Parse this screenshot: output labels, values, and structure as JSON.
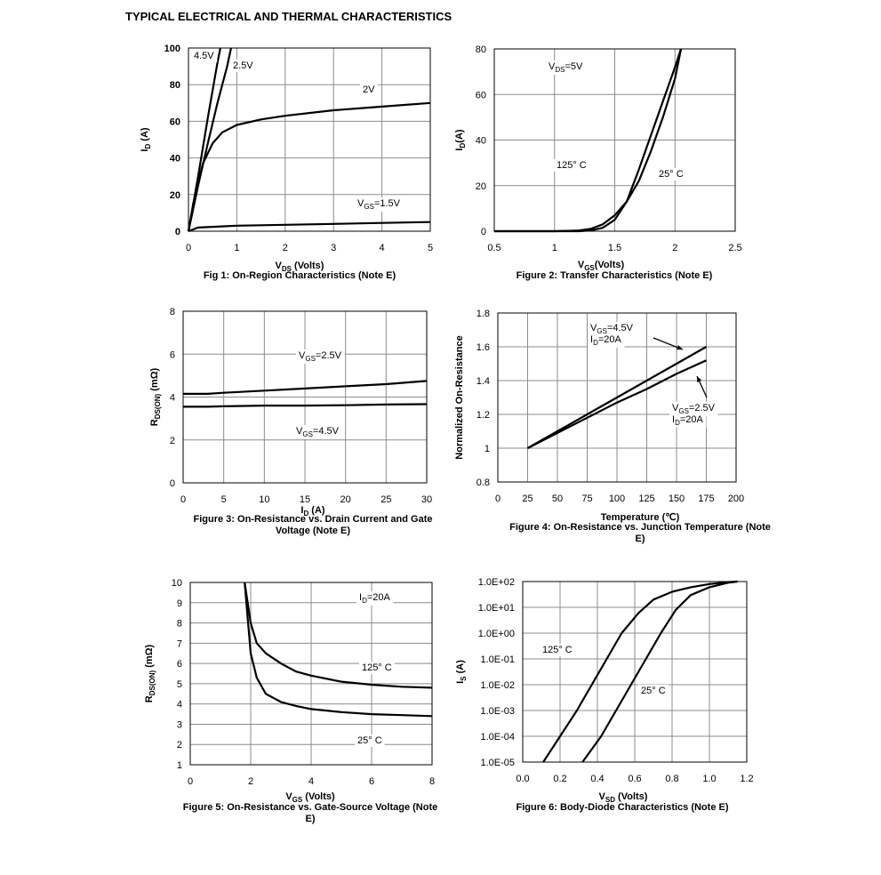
{
  "title": "TYPICAL ELECTRICAL AND THERMAL CHARACTERISTICS",
  "chart_data": [
    {
      "type": "line",
      "title": "Fig 1: On-Region Characteristics (Note E)",
      "xlabel": [
        "V",
        "DS",
        " (Volts)"
      ],
      "ylabel": [
        "I",
        "D",
        " (A)"
      ],
      "xlim": [
        0,
        5
      ],
      "xticks": [
        0,
        1,
        2,
        3,
        4,
        5
      ],
      "ylim": [
        0,
        100
      ],
      "yticks": [
        0,
        20,
        40,
        60,
        80,
        100
      ],
      "grid": true,
      "series": [
        {
          "name": "4.5V",
          "color": "#000000",
          "x": [
            0,
            0.2,
            0.4,
            0.6,
            0.66
          ],
          "values": [
            0,
            30,
            62,
            92,
            100
          ]
        },
        {
          "name": "2.5V",
          "color": "#000000",
          "x": [
            0,
            0.2,
            0.4,
            0.6,
            0.8,
            0.88
          ],
          "values": [
            0,
            25,
            48,
            70,
            90,
            100
          ]
        },
        {
          "name": "2V",
          "color": "#000000",
          "x": [
            0,
            0.1,
            0.2,
            0.3,
            0.5,
            0.7,
            1,
            1.5,
            2,
            3,
            4,
            5
          ],
          "values": [
            0,
            15,
            27,
            37,
            48,
            54,
            58,
            61,
            63,
            66,
            68,
            70
          ]
        },
        {
          "name": [
            "V",
            "GS",
            "=1.5V"
          ],
          "color": "#000000",
          "x": [
            0,
            0.2,
            1,
            2,
            3,
            4,
            5
          ],
          "values": [
            0,
            2,
            3,
            3.5,
            4,
            4.5,
            5
          ]
        }
      ]
    },
    {
      "type": "line",
      "title": "Figure 2: Transfer Characteristics (Note E)",
      "xlabel": [
        "V",
        "GS",
        "(Volts)"
      ],
      "ylabel": [
        "I",
        "D",
        "(A)"
      ],
      "xlim": [
        0.5,
        2.5
      ],
      "xticks": [
        0.5,
        1,
        1.5,
        2,
        2.5
      ],
      "ylim": [
        0,
        80
      ],
      "yticks": [
        0,
        20,
        40,
        60,
        80
      ],
      "grid": true,
      "annotations": [
        [
          "V",
          "DS",
          "=5V"
        ]
      ],
      "series": [
        {
          "name": "125° C",
          "color": "#000000",
          "x": [
            0.5,
            1,
            1.2,
            1.3,
            1.4,
            1.5,
            1.6,
            1.7,
            1.8,
            1.9,
            2.0,
            2.05
          ],
          "values": [
            0,
            0,
            0.3,
            1,
            3,
            7,
            13,
            22,
            35,
            50,
            67,
            80
          ]
        },
        {
          "name": "25° C",
          "color": "#000000",
          "x": [
            0.5,
            1.2,
            1.3,
            1.4,
            1.5,
            1.6,
            1.7,
            1.8,
            1.9,
            2.0,
            2.05
          ],
          "values": [
            0,
            0,
            0.3,
            1.5,
            5,
            13,
            27,
            42,
            57,
            72,
            80
          ]
        }
      ]
    },
    {
      "type": "line",
      "title": "Figure 3: On-Resistance vs. Drain Current and Gate Voltage (Note E)",
      "xlabel": [
        "I",
        "D",
        " (A)"
      ],
      "ylabel": [
        "R",
        "DS(ON)",
        " (mΩ)"
      ],
      "xlim": [
        0,
        30
      ],
      "xticks": [
        0,
        5,
        10,
        15,
        20,
        25,
        30
      ],
      "ylim": [
        0,
        8
      ],
      "yticks": [
        0,
        2,
        4,
        6,
        8
      ],
      "grid": true,
      "series": [
        {
          "name": [
            "V",
            "GS",
            "=2.5V"
          ],
          "color": "#000000",
          "x": [
            0,
            3,
            5,
            10,
            15,
            20,
            25,
            30
          ],
          "values": [
            4.15,
            4.15,
            4.2,
            4.3,
            4.4,
            4.5,
            4.6,
            4.75
          ]
        },
        {
          "name": [
            "V",
            "GS",
            "=4.5V"
          ],
          "color": "#000000",
          "x": [
            0,
            3,
            5,
            10,
            15,
            20,
            25,
            30
          ],
          "values": [
            3.55,
            3.55,
            3.57,
            3.6,
            3.6,
            3.62,
            3.65,
            3.67
          ]
        }
      ]
    },
    {
      "type": "line",
      "title": "Figure 4: On-Resistance vs. Junction Temperature (Note E)",
      "xlabel": "Temperature (℃)",
      "ylabel": "Normalized On-Resistance",
      "xlim": [
        0,
        200
      ],
      "xticks": [
        0,
        25,
        50,
        75,
        100,
        125,
        150,
        175,
        200
      ],
      "ylim": [
        0.8,
        1.8
      ],
      "yticks": [
        0.8,
        1,
        1.2,
        1.4,
        1.6,
        1.8
      ],
      "grid": true,
      "series": [
        {
          "name": [
            [
              "V",
              "GS",
              "=4.5V"
            ],
            [
              "I",
              "D",
              "=20A"
            ]
          ],
          "color": "#000000",
          "x": [
            25,
            50,
            75,
            100,
            125,
            150,
            175
          ],
          "values": [
            1,
            1.1,
            1.2,
            1.3,
            1.4,
            1.5,
            1.6
          ]
        },
        {
          "name": [
            [
              "V",
              "GS",
              "=2.5V"
            ],
            [
              "I",
              "D",
              "=20A"
            ]
          ],
          "color": "#000000",
          "x": [
            25,
            50,
            75,
            100,
            125,
            150,
            175
          ],
          "values": [
            1,
            1.09,
            1.18,
            1.27,
            1.35,
            1.44,
            1.52
          ]
        }
      ]
    },
    {
      "type": "line",
      "title": "Figure 5: On-Resistance vs. Gate-Source Voltage (Note E)",
      "xlabel": [
        "V",
        "GS",
        " (Volts)"
      ],
      "ylabel": [
        "R",
        "DS(ON)",
        " (mΩ)"
      ],
      "xlim": [
        0,
        8
      ],
      "xticks": [
        0,
        2,
        4,
        6,
        8
      ],
      "ylim": [
        1,
        10
      ],
      "yticks": [
        1,
        2,
        3,
        4,
        5,
        6,
        7,
        8,
        9,
        10
      ],
      "grid": true,
      "annotations": [
        [
          "I",
          "D",
          "=20A"
        ]
      ],
      "series": [
        {
          "name": "125° C",
          "color": "#000000",
          "x": [
            1.8,
            2,
            2.2,
            2.5,
            3,
            3.5,
            4,
            5,
            6,
            7,
            8
          ],
          "values": [
            10,
            8,
            7,
            6.5,
            6,
            5.6,
            5.4,
            5.1,
            4.95,
            4.85,
            4.8
          ]
        },
        {
          "name": "25° C",
          "color": "#000000",
          "x": [
            1.8,
            2,
            2.2,
            2.5,
            3,
            3.5,
            4,
            5,
            6,
            7,
            8
          ],
          "values": [
            10,
            6.5,
            5.3,
            4.5,
            4.1,
            3.9,
            3.75,
            3.6,
            3.5,
            3.45,
            3.4
          ]
        }
      ]
    },
    {
      "type": "line",
      "title": "Figure 6: Body-Diode Characteristics (Note E)",
      "xlabel": [
        "V",
        "SD",
        " (Volts)"
      ],
      "ylabel": [
        "I",
        "S",
        " (A)"
      ],
      "xlim": [
        0,
        1.2
      ],
      "xticks": [
        {
          "value": 0,
          "label": "0.0"
        },
        0.2,
        0.4,
        0.6,
        0.8,
        {
          "value": 1,
          "label": "1.0"
        },
        1.2
      ],
      "ylim": [
        1e-05,
        100
      ],
      "yscale": "log",
      "yticks": [
        {
          "value": 1e-05,
          "label": "1.0E-05"
        },
        {
          "value": 0.0001,
          "label": "1.0E-04"
        },
        {
          "value": 0.001,
          "label": "1.0E-03"
        },
        {
          "value": 0.01,
          "label": "1.0E-02"
        },
        {
          "value": 0.1,
          "label": "1.0E-01"
        },
        {
          "value": 1,
          "label": "1.0E+00"
        },
        {
          "value": 10,
          "label": "1.0E+01"
        },
        {
          "value": 100,
          "label": "1.0E+02"
        }
      ],
      "grid": true,
      "series": [
        {
          "name": "125° C",
          "color": "#000000",
          "x": [
            0.11,
            0.2,
            0.29,
            0.37,
            0.45,
            0.53,
            0.62,
            0.7,
            0.8,
            0.9,
            1.0,
            1.1,
            1.15
          ],
          "values": [
            1e-05,
            0.0001,
            0.001,
            0.01,
            0.1,
            1,
            6,
            20,
            40,
            60,
            80,
            95,
            100
          ]
        },
        {
          "name": "25° C",
          "color": "#000000",
          "x": [
            0.32,
            0.42,
            0.5,
            0.58,
            0.66,
            0.74,
            0.82,
            0.9,
            1.0,
            1.1,
            1.15
          ],
          "values": [
            1e-05,
            0.0001,
            0.001,
            0.01,
            0.1,
            1,
            8,
            30,
            60,
            90,
            100
          ]
        }
      ]
    }
  ]
}
